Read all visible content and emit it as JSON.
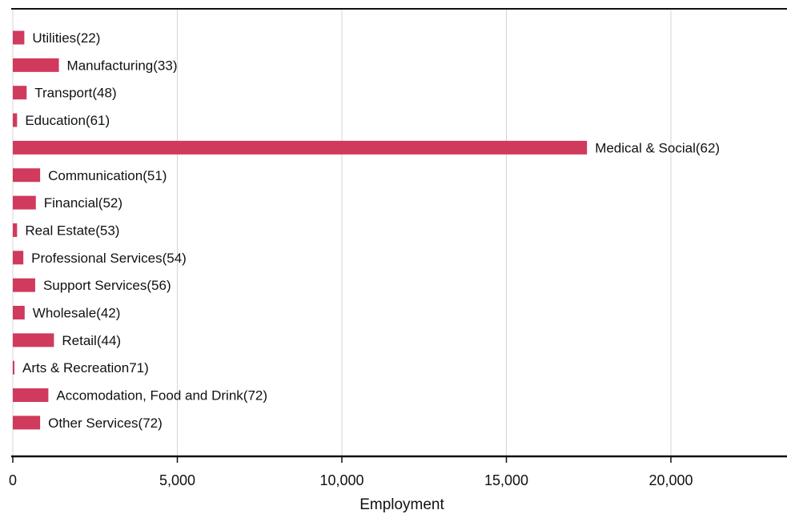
{
  "chart_data": {
    "type": "bar",
    "orientation": "horizontal",
    "title": "",
    "xlabel": "Employment",
    "ylabel": "",
    "xlim": [
      0,
      23500
    ],
    "grid": true,
    "legend": "none",
    "bar_color": "#d03a5c",
    "categories": [
      "Utilities(22)",
      "Manufacturing(33)",
      "Transport(48)",
      "Education(61)",
      "Medical & Social(62)",
      "Communication(51)",
      "Financial(52)",
      "Real Estate(53)",
      "Professional Services(54)",
      "Support Services(56)",
      "Wholesale(42)",
      "Retail(44)",
      "Arts & Recreation71)",
      "Accomodation, Food and Drink(72)",
      "Other Services(72)"
    ],
    "values": [
      350,
      1400,
      420,
      130,
      17450,
      830,
      700,
      130,
      320,
      680,
      360,
      1250,
      40,
      1080,
      830
    ],
    "x_ticks": [
      0,
      5000,
      10000,
      15000,
      20000
    ],
    "x_tick_labels": [
      "0",
      "5,000",
      "10,000",
      "15,000",
      "20,000"
    ]
  }
}
